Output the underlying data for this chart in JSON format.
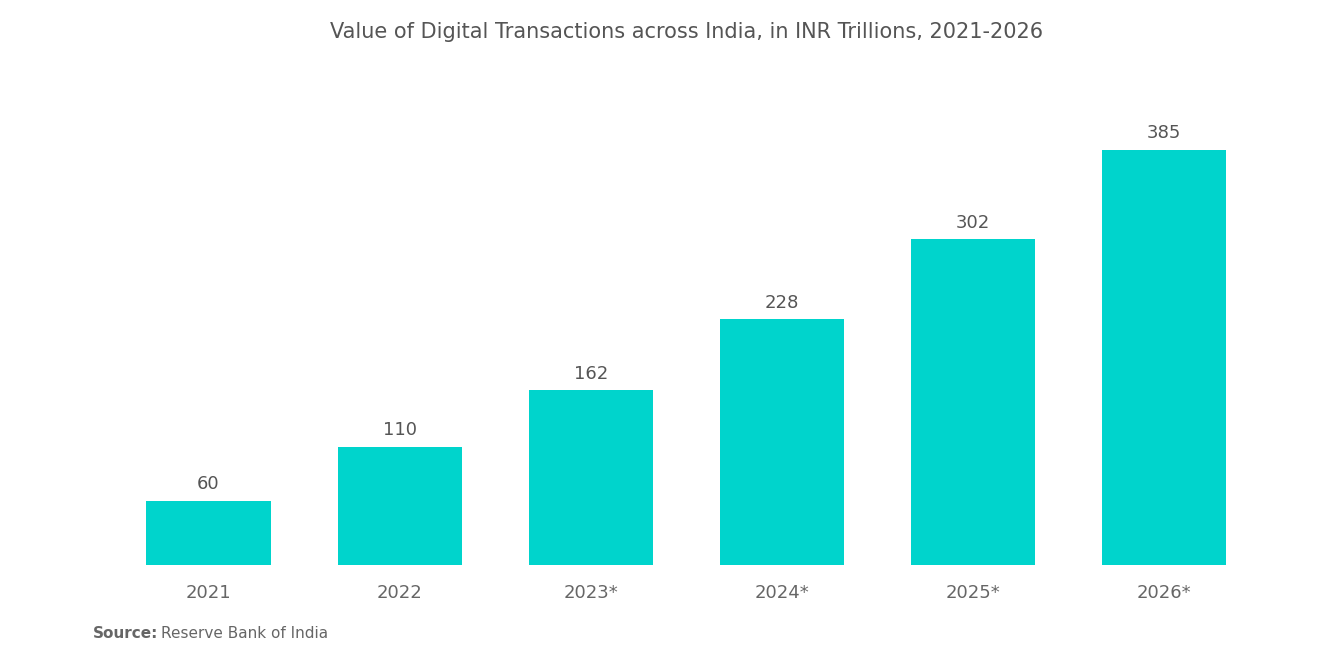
{
  "title": "Value of Digital Transactions across India, in INR Trillions, 2021-2026",
  "categories": [
    "2021",
    "2022",
    "2023*",
    "2024*",
    "2025*",
    "2026*"
  ],
  "values": [
    60,
    110,
    162,
    228,
    302,
    385
  ],
  "bar_color": "#00D4CC",
  "background_color": "#FFFFFF",
  "title_color": "#555555",
  "label_color": "#555555",
  "tick_color": "#666666",
  "source_bold": "Source:",
  "source_normal": "  Reserve Bank of India",
  "title_fontsize": 15,
  "label_fontsize": 13,
  "tick_fontsize": 13,
  "source_fontsize": 11,
  "ylim": [
    0,
    450
  ],
  "bar_width": 0.65
}
